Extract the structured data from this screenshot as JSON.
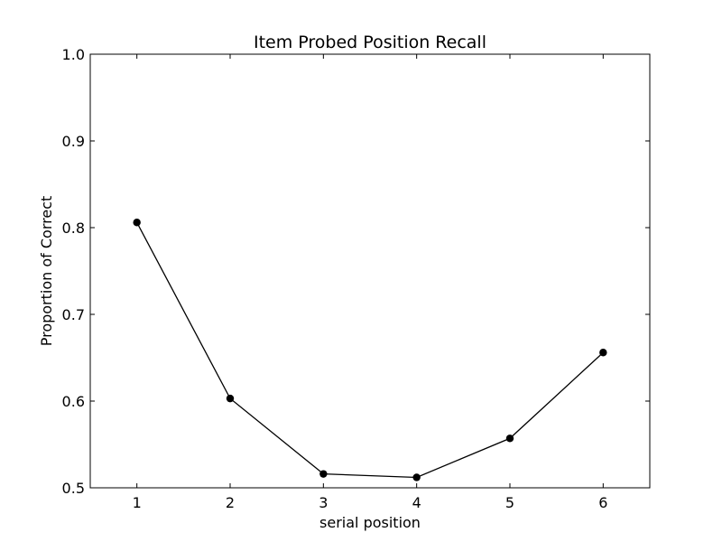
{
  "chart_data": {
    "type": "line",
    "title": "Item Probed Position Recall",
    "xlabel": "serial position",
    "ylabel": "Proportion of Correct",
    "xlim": [
      0.5,
      6.5
    ],
    "ylim": [
      0.5,
      1.0
    ],
    "xticks": [
      1,
      2,
      3,
      4,
      5,
      6
    ],
    "yticks": [
      0.5,
      0.6,
      0.7,
      0.8,
      0.9,
      1.0
    ],
    "ytick_labels": [
      "0.5",
      "0.6",
      "0.7",
      "0.8",
      "0.9",
      "1.0"
    ],
    "grid": false,
    "series": [
      {
        "x": [
          1,
          2,
          3,
          4,
          5,
          6
        ],
        "values": [
          0.806,
          0.603,
          0.516,
          0.512,
          0.557,
          0.656
        ],
        "color": "#000000",
        "marker": "circle"
      }
    ]
  }
}
